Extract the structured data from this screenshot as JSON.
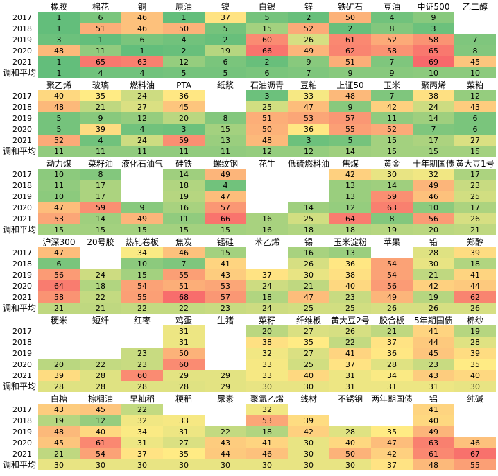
{
  "chart_data": {
    "type": "heatmap",
    "title": "",
    "row_labels": [
      "2017",
      "2018",
      "2019",
      "2020",
      "2021",
      "调和平均"
    ],
    "color_scale": {
      "low": "#63be7b",
      "mid": "#ffeb84",
      "high": "#f8696b",
      "range": [
        1,
        69
      ]
    },
    "blocks": [
      {
        "columns": [
          "橡胶",
          "棉花",
          "铜",
          "原油",
          "镍",
          "白银",
          "锌",
          "铁矿石",
          "豆油",
          "中证500",
          "乙二醇"
        ],
        "rows": [
          [
            1,
            6,
            46,
            1,
            37,
            5,
            2,
            50,
            4,
            9,
            null
          ],
          [
            1,
            51,
            46,
            50,
            5,
            15,
            52,
            2,
            8,
            3,
            null
          ],
          [
            3,
            1,
            6,
            4,
            2,
            60,
            26,
            61,
            52,
            58,
            7
          ],
          [
            48,
            11,
            1,
            2,
            19,
            66,
            49,
            62,
            58,
            65,
            8
          ],
          [
            1,
            65,
            63,
            12,
            6,
            2,
            9,
            51,
            7,
            69,
            45
          ],
          [
            1,
            4,
            4,
            5,
            5,
            6,
            7,
            9,
            9,
            10,
            10
          ]
        ]
      },
      {
        "columns": [
          "聚乙烯",
          "玻璃",
          "燃料油",
          "PTA",
          "纸浆",
          "石油沥青",
          "豆粕",
          "上证50",
          "玉米",
          "聚丙烯",
          "菜粕"
        ],
        "rows": [
          [
            40,
            35,
            24,
            36,
            null,
            3,
            33,
            48,
            7,
            38,
            12
          ],
          [
            48,
            21,
            27,
            45,
            null,
            25,
            47,
            9,
            42,
            24,
            43
          ],
          [
            5,
            9,
            12,
            20,
            8,
            51,
            53,
            57,
            11,
            14,
            6
          ],
          [
            5,
            39,
            4,
            3,
            15,
            50,
            36,
            55,
            52,
            7,
            6
          ],
          [
            52,
            4,
            24,
            59,
            13,
            48,
            3,
            5,
            15,
            17,
            27
          ],
          [
            11,
            11,
            11,
            11,
            11,
            12,
            12,
            14,
            15,
            15,
            15
          ]
        ]
      },
      {
        "columns": [
          "动力煤",
          "菜籽油",
          "液化石油气",
          "硅铁",
          "螺纹钢",
          "花生",
          "低硫燃料油",
          "焦煤",
          "黄金",
          "十年期国债",
          "黄大豆1号"
        ],
        "rows": [
          [
            10,
            8,
            null,
            14,
            49,
            null,
            null,
            42,
            30,
            32,
            17
          ],
          [
            11,
            17,
            null,
            18,
            4,
            null,
            null,
            13,
            14,
            49,
            23
          ],
          [
            10,
            17,
            null,
            19,
            47,
            null,
            null,
            13,
            59,
            46,
            25
          ],
          [
            47,
            59,
            9,
            16,
            57,
            null,
            14,
            12,
            63,
            10,
            17
          ],
          [
            53,
            14,
            49,
            11,
            66,
            16,
            25,
            64,
            8,
            56,
            26
          ],
          [
            15,
            15,
            15,
            15,
            15,
            16,
            18,
            18,
            19,
            20,
            21
          ]
        ]
      },
      {
        "columns": [
          "沪深300",
          "20号胶",
          "热轧卷板",
          "焦炭",
          "锰硅",
          "苯乙烯",
          "锡",
          "玉米淀粉",
          "苹果",
          "铅",
          "郑醇"
        ],
        "rows": [
          [
            47,
            null,
            34,
            46,
            15,
            null,
            16,
            13,
            null,
            28,
            39
          ],
          [
            6,
            null,
            10,
            7,
            41,
            null,
            26,
            36,
            54,
            30,
            18
          ],
          [
            56,
            24,
            15,
            55,
            43,
            37,
            30,
            38,
            54,
            21,
            41
          ],
          [
            64,
            18,
            54,
            51,
            53,
            24,
            21,
            40,
            56,
            42,
            44
          ],
          [
            58,
            22,
            55,
            68,
            57,
            18,
            47,
            23,
            49,
            19,
            62
          ],
          [
            21,
            21,
            22,
            22,
            23,
            24,
            25,
            25,
            26,
            26,
            26
          ]
        ]
      },
      {
        "columns": [
          "粳米",
          "短纤",
          "红枣",
          "鸡蛋",
          "生猪",
          "菜籽",
          "纤维板",
          "黄大豆2号",
          "胶合板",
          "5年期国债",
          "棉纱"
        ],
        "rows": [
          [
            null,
            null,
            null,
            31,
            null,
            20,
            27,
            26,
            21,
            41,
            19
          ],
          [
            null,
            null,
            null,
            31,
            null,
            38,
            35,
            22,
            37,
            44,
            28
          ],
          [
            null,
            null,
            23,
            50,
            null,
            32,
            27,
            41,
            36,
            45,
            39
          ],
          [
            20,
            22,
            23,
            60,
            null,
            33,
            25,
            37,
            28,
            23,
            35
          ],
          [
            39,
            28,
            60,
            29,
            29,
            33,
            40,
            31,
            34,
            43,
            40
          ],
          [
            28,
            28,
            28,
            28,
            29,
            30,
            30,
            31,
            31,
            31,
            30
          ]
        ]
      },
      {
        "columns": [
          "白糖",
          "棕榈油",
          "早籼稻",
          "粳稻",
          "尿素",
          "聚氯乙烯",
          "线材",
          "不锈钢",
          "两年期国债",
          "铝",
          "纯碱"
        ],
        "rows": [
          [
            43,
            45,
            22,
            null,
            null,
            32,
            null,
            null,
            null,
            41,
            null
          ],
          [
            19,
            12,
            32,
            33,
            null,
            53,
            39,
            null,
            null,
            40,
            null
          ],
          [
            48,
            40,
            34,
            31,
            22,
            18,
            42,
            28,
            35,
            49,
            null
          ],
          [
            45,
            61,
            31,
            27,
            43,
            41,
            30,
            40,
            47,
            63,
            46
          ],
          [
            21,
            54,
            37,
            35,
            44,
            46,
            30,
            50,
            42,
            61,
            67
          ],
          [
            30,
            30,
            30,
            30,
            30,
            30,
            30,
            30,
            37,
            48,
            55
          ]
        ]
      }
    ]
  }
}
